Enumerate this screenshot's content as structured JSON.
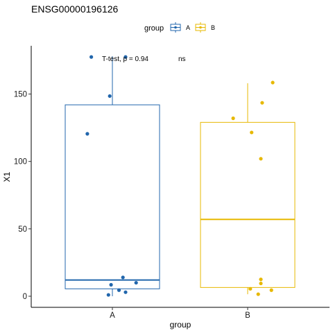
{
  "chart_data": {
    "type": "box",
    "title": "ENSG00000196126",
    "xlabel": "group",
    "ylabel": "X1",
    "categories": [
      "A",
      "B"
    ],
    "ylim": [
      -8,
      182
    ],
    "yticks": [
      0,
      50,
      100,
      150
    ],
    "legend": {
      "title": "group",
      "position": "top",
      "entries": [
        "A",
        "B"
      ]
    },
    "grid": false,
    "annotation": {
      "test_label": "T-test, p = 0.94",
      "signif_label": "ns"
    },
    "series": [
      {
        "name": "A",
        "color": "#2166ac",
        "box": {
          "min": 0,
          "q1": 5.5,
          "median": 12,
          "q3": 142,
          "max": 178
        },
        "points": [
          {
            "x_jitter": -0.16,
            "y": 177.5
          },
          {
            "x_jitter": 0.1,
            "y": 177.5
          },
          {
            "x_jitter": -0.02,
            "y": 148.5
          },
          {
            "x_jitter": -0.19,
            "y": 120.5
          },
          {
            "x_jitter": 0.08,
            "y": 14
          },
          {
            "x_jitter": 0.18,
            "y": 10
          },
          {
            "x_jitter": -0.01,
            "y": 8.5
          },
          {
            "x_jitter": 0.05,
            "y": 4.5
          },
          {
            "x_jitter": 0.1,
            "y": 3
          },
          {
            "x_jitter": -0.03,
            "y": 1
          }
        ]
      },
      {
        "name": "B",
        "color": "#e7b800",
        "box": {
          "min": 1.5,
          "q1": 6.5,
          "median": 57,
          "q3": 129,
          "max": 158
        },
        "points": [
          {
            "x_jitter": 0.19,
            "y": 158.5
          },
          {
            "x_jitter": 0.11,
            "y": 143.5
          },
          {
            "x_jitter": -0.11,
            "y": 132
          },
          {
            "x_jitter": 0.03,
            "y": 121.5
          },
          {
            "x_jitter": 0.1,
            "y": 102
          },
          {
            "x_jitter": 0.1,
            "y": 12.5
          },
          {
            "x_jitter": 0.1,
            "y": 9.5
          },
          {
            "x_jitter": 0.02,
            "y": 5.5
          },
          {
            "x_jitter": 0.18,
            "y": 4.5
          },
          {
            "x_jitter": 0.08,
            "y": 1.5
          }
        ]
      }
    ]
  }
}
